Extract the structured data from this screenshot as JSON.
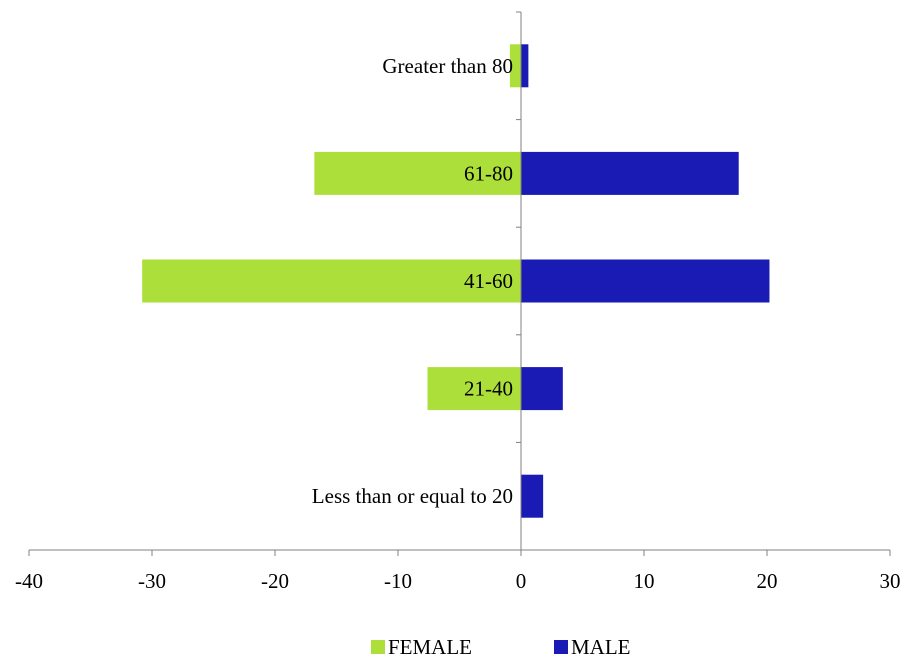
{
  "chart_data": {
    "type": "bar",
    "orientation": "horizontal",
    "stacked": false,
    "categories": [
      "Less than or equal to 20",
      "21-40",
      "41-60",
      "61-80",
      "Greater than 80"
    ],
    "series": [
      {
        "name": "FEMALE",
        "color": "#addf3a",
        "values": [
          0,
          -7.6,
          -30.8,
          -16.8,
          -0.9
        ]
      },
      {
        "name": "MALE",
        "color": "#1a1ab4",
        "values": [
          1.8,
          3.4,
          20.2,
          17.7,
          0.6
        ]
      }
    ],
    "xlim": [
      -40,
      30
    ],
    "xticks": [
      "-40",
      "-30",
      "-20",
      "-10",
      "0",
      "10",
      "20",
      "30"
    ],
    "xlabel": "",
    "ylabel": "",
    "title": "",
    "grid": false,
    "legend": {
      "position": "bottom",
      "entries": [
        "FEMALE",
        "MALE"
      ]
    }
  }
}
